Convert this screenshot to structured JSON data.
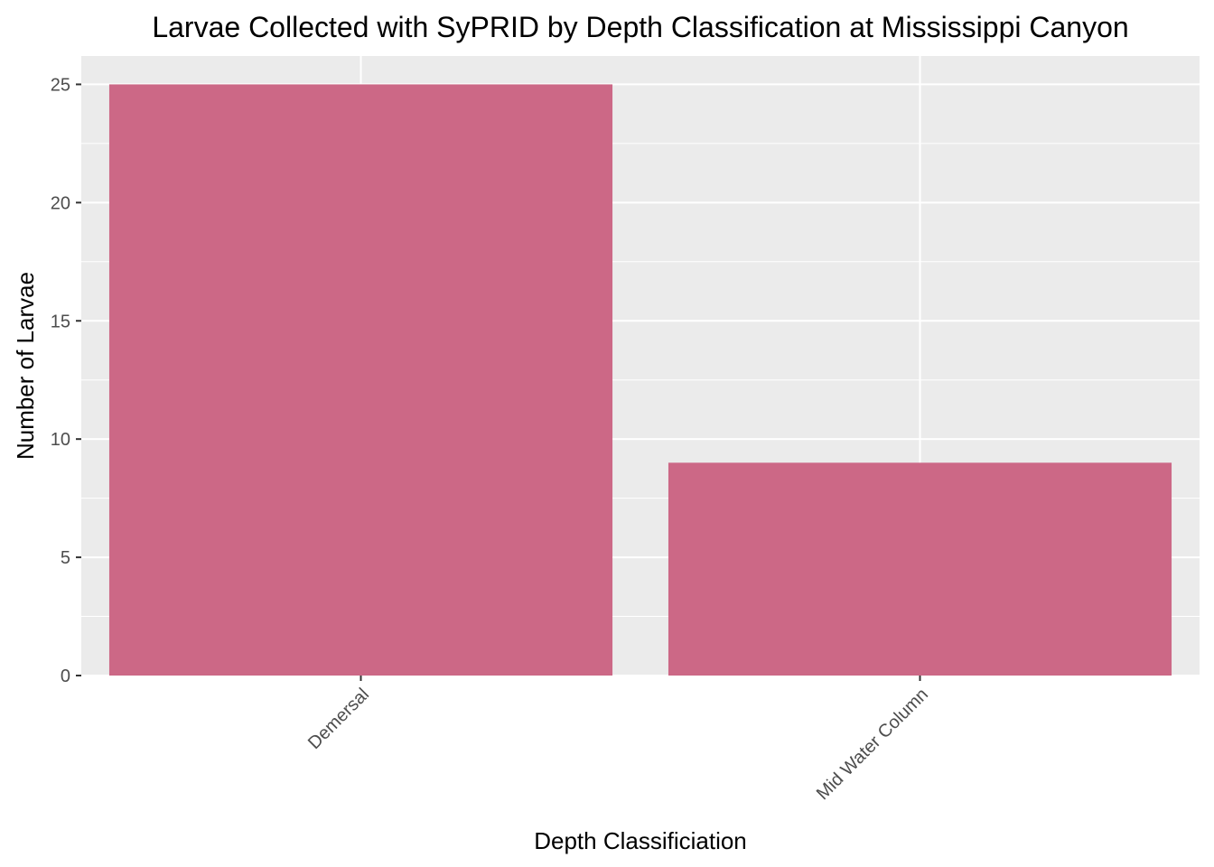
{
  "chart_data": {
    "type": "bar",
    "title": "Larvae Collected with SyPRID by Depth Classification at Mississippi Canyon",
    "xlabel": "Depth Classificiation",
    "ylabel": "Number of Larvae",
    "categories": [
      "Demersal",
      "Mid Water Column"
    ],
    "values": [
      25,
      9
    ],
    "ylim": [
      0,
      26.2
    ],
    "yticks": [
      0,
      5,
      10,
      15,
      20,
      25
    ],
    "ytick_labels": [
      "0",
      "5",
      "10",
      "15",
      "20",
      "25"
    ],
    "grid": true,
    "legend": "none",
    "x_tick_rotation": -45,
    "colors": {
      "bar": "#cc6886",
      "panel_background": "#ebebeb",
      "grid": "#ffffff",
      "tick_text": "#4d4d4d",
      "axis_tick": "#333333"
    }
  }
}
